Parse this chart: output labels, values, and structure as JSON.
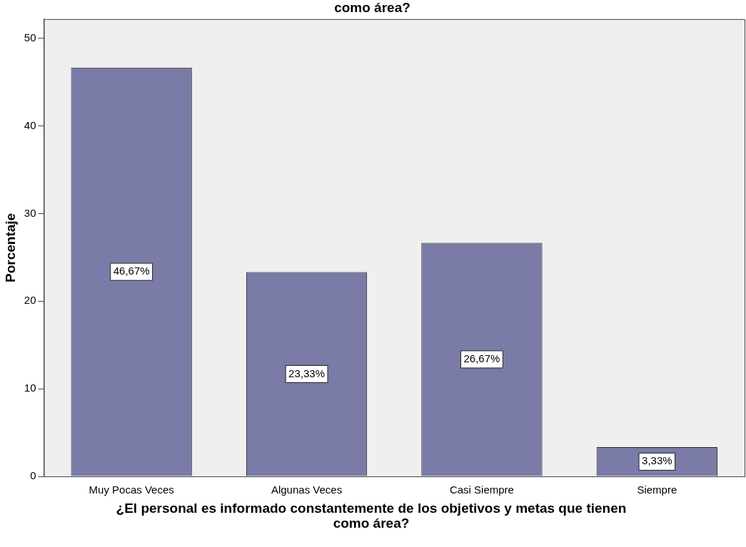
{
  "chart_data": {
    "type": "bar",
    "title": "como área?",
    "xlabel": "¿El personal es informado constantemente de los objetivos y metas  que tienen como área?",
    "ylabel": "Porcentaje",
    "categories": [
      "Muy Pocas Veces",
      "Algunas Veces",
      "Casi Siempre",
      "Siempre"
    ],
    "values": [
      46.67,
      23.33,
      26.67,
      3.33
    ],
    "value_labels": [
      "46,67%",
      "23,33%",
      "26,67%",
      "3,33%"
    ],
    "color": "#7b7ba8",
    "ylim": [
      0,
      52.2
    ],
    "yticks": [
      0,
      10,
      20,
      30,
      40,
      50
    ],
    "grid": false,
    "legend": false
  }
}
